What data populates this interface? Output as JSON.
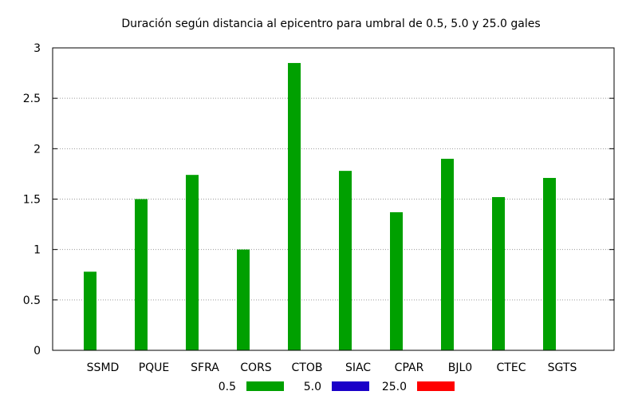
{
  "chart_data": {
    "type": "bar",
    "title": "Duración según distancia al epicentro para umbral de 0.5, 5.0 y 25.0 gales",
    "xlabel": "",
    "ylabel": "",
    "categories": [
      "SSMD",
      "PQUE",
      "SFRA",
      "CORS",
      "CTOB",
      "SIAC",
      "CPAR",
      "BJL0",
      "CTEC",
      "SGTS"
    ],
    "series": [
      {
        "name": "0.5",
        "color": "#00a000",
        "values": [
          0.78,
          1.5,
          1.74,
          1.0,
          2.85,
          1.78,
          1.37,
          1.9,
          1.52,
          1.71
        ]
      },
      {
        "name": "5.0",
        "color": "#1a00c8",
        "values": [
          0,
          0,
          0,
          0,
          0,
          0,
          0,
          0,
          0,
          0
        ]
      },
      {
        "name": "25.0",
        "color": "#ff0000",
        "values": [
          0,
          0,
          0,
          0,
          0,
          0,
          0,
          0,
          0,
          0
        ]
      }
    ],
    "ylim": [
      0,
      3
    ],
    "yticks": [
      "0",
      "0.5",
      "1",
      "1.5",
      "2",
      "2.5",
      "3"
    ],
    "grid": true,
    "legend_position": "bottom"
  }
}
